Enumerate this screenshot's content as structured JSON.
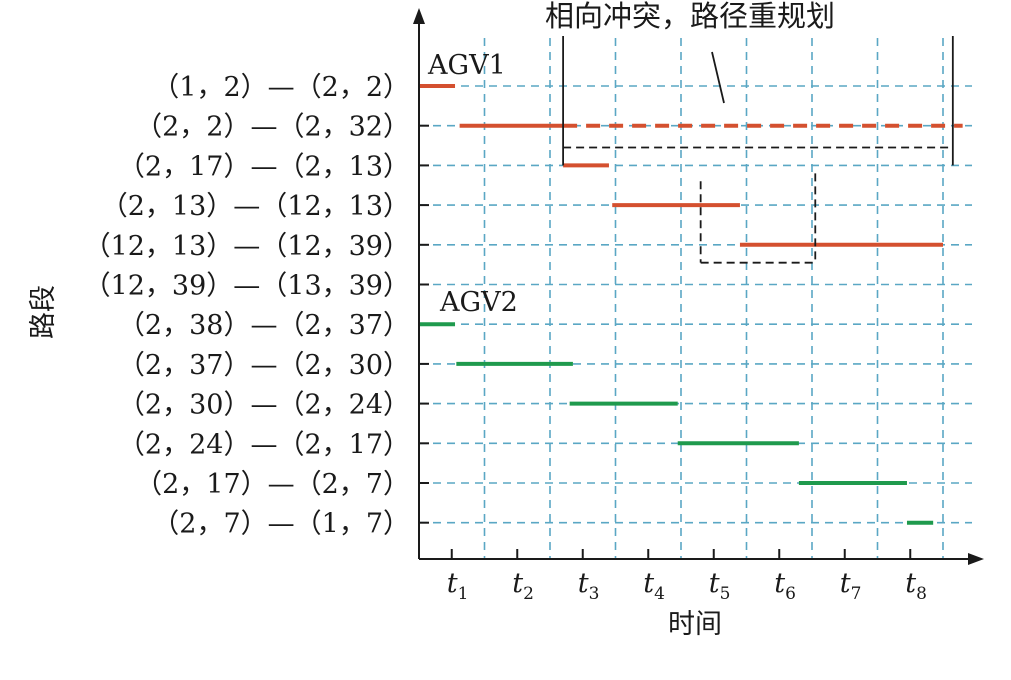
{
  "chart_data": {
    "type": "gantt",
    "title": "",
    "xlabel": "时间",
    "ylabel": "路段",
    "x_ticks": [
      {
        "main": "t",
        "sub": "1"
      },
      {
        "main": "t",
        "sub": "2"
      },
      {
        "main": "t",
        "sub": "3"
      },
      {
        "main": "t",
        "sub": "4"
      },
      {
        "main": "t",
        "sub": "5"
      },
      {
        "main": "t",
        "sub": "6"
      },
      {
        "main": "t",
        "sub": "7"
      },
      {
        "main": "t",
        "sub": "8"
      }
    ],
    "segments": [
      "（1，2）—（2，2）",
      "（2，2）—（2，32）",
      "（2，17）—（2，13）",
      "（2，13）—（12，13）",
      "（12，13）—（12，39）",
      "（12，39）—（13，39）",
      "（2，38）—（2，37）",
      "（2，37）—（2，30）",
      "（2，30）—（2，24）",
      "（2，24）—（2，17）",
      "（2，17）—（2，7）",
      "（2，7）—（1，7）"
    ],
    "series": [
      {
        "name": "AGV1",
        "color": "#d4502f",
        "bars": [
          {
            "segment": 0,
            "start": 0.0,
            "end": 0.55,
            "style": "solid"
          },
          {
            "segment": 1,
            "start": 0.62,
            "end": 2.2,
            "style": "solid"
          },
          {
            "segment": 1,
            "start": 2.2,
            "end": 8.3,
            "style": "dashed"
          },
          {
            "segment": 2,
            "start": 2.2,
            "end": 2.9,
            "style": "solid"
          },
          {
            "segment": 3,
            "start": 2.95,
            "end": 4.9,
            "style": "solid"
          },
          {
            "segment": 4,
            "start": 4.9,
            "end": 8.0,
            "style": "solid"
          }
        ]
      },
      {
        "name": "AGV2",
        "color": "#1f9a4d",
        "bars": [
          {
            "segment": 6,
            "start": 0.0,
            "end": 0.55,
            "style": "solid"
          },
          {
            "segment": 7,
            "start": 0.57,
            "end": 2.35,
            "style": "solid"
          },
          {
            "segment": 8,
            "start": 2.3,
            "end": 3.95,
            "style": "solid"
          },
          {
            "segment": 9,
            "start": 3.95,
            "end": 5.8,
            "style": "solid"
          },
          {
            "segment": 10,
            "start": 5.8,
            "end": 7.45,
            "style": "solid"
          },
          {
            "segment": 11,
            "start": 7.45,
            "end": 7.85,
            "style": "solid"
          }
        ]
      }
    ],
    "annotation": "相向冲突，路径重规划",
    "grid": true,
    "grid_color": "#5aa7c4",
    "axis_color": "#1a1a1a"
  }
}
